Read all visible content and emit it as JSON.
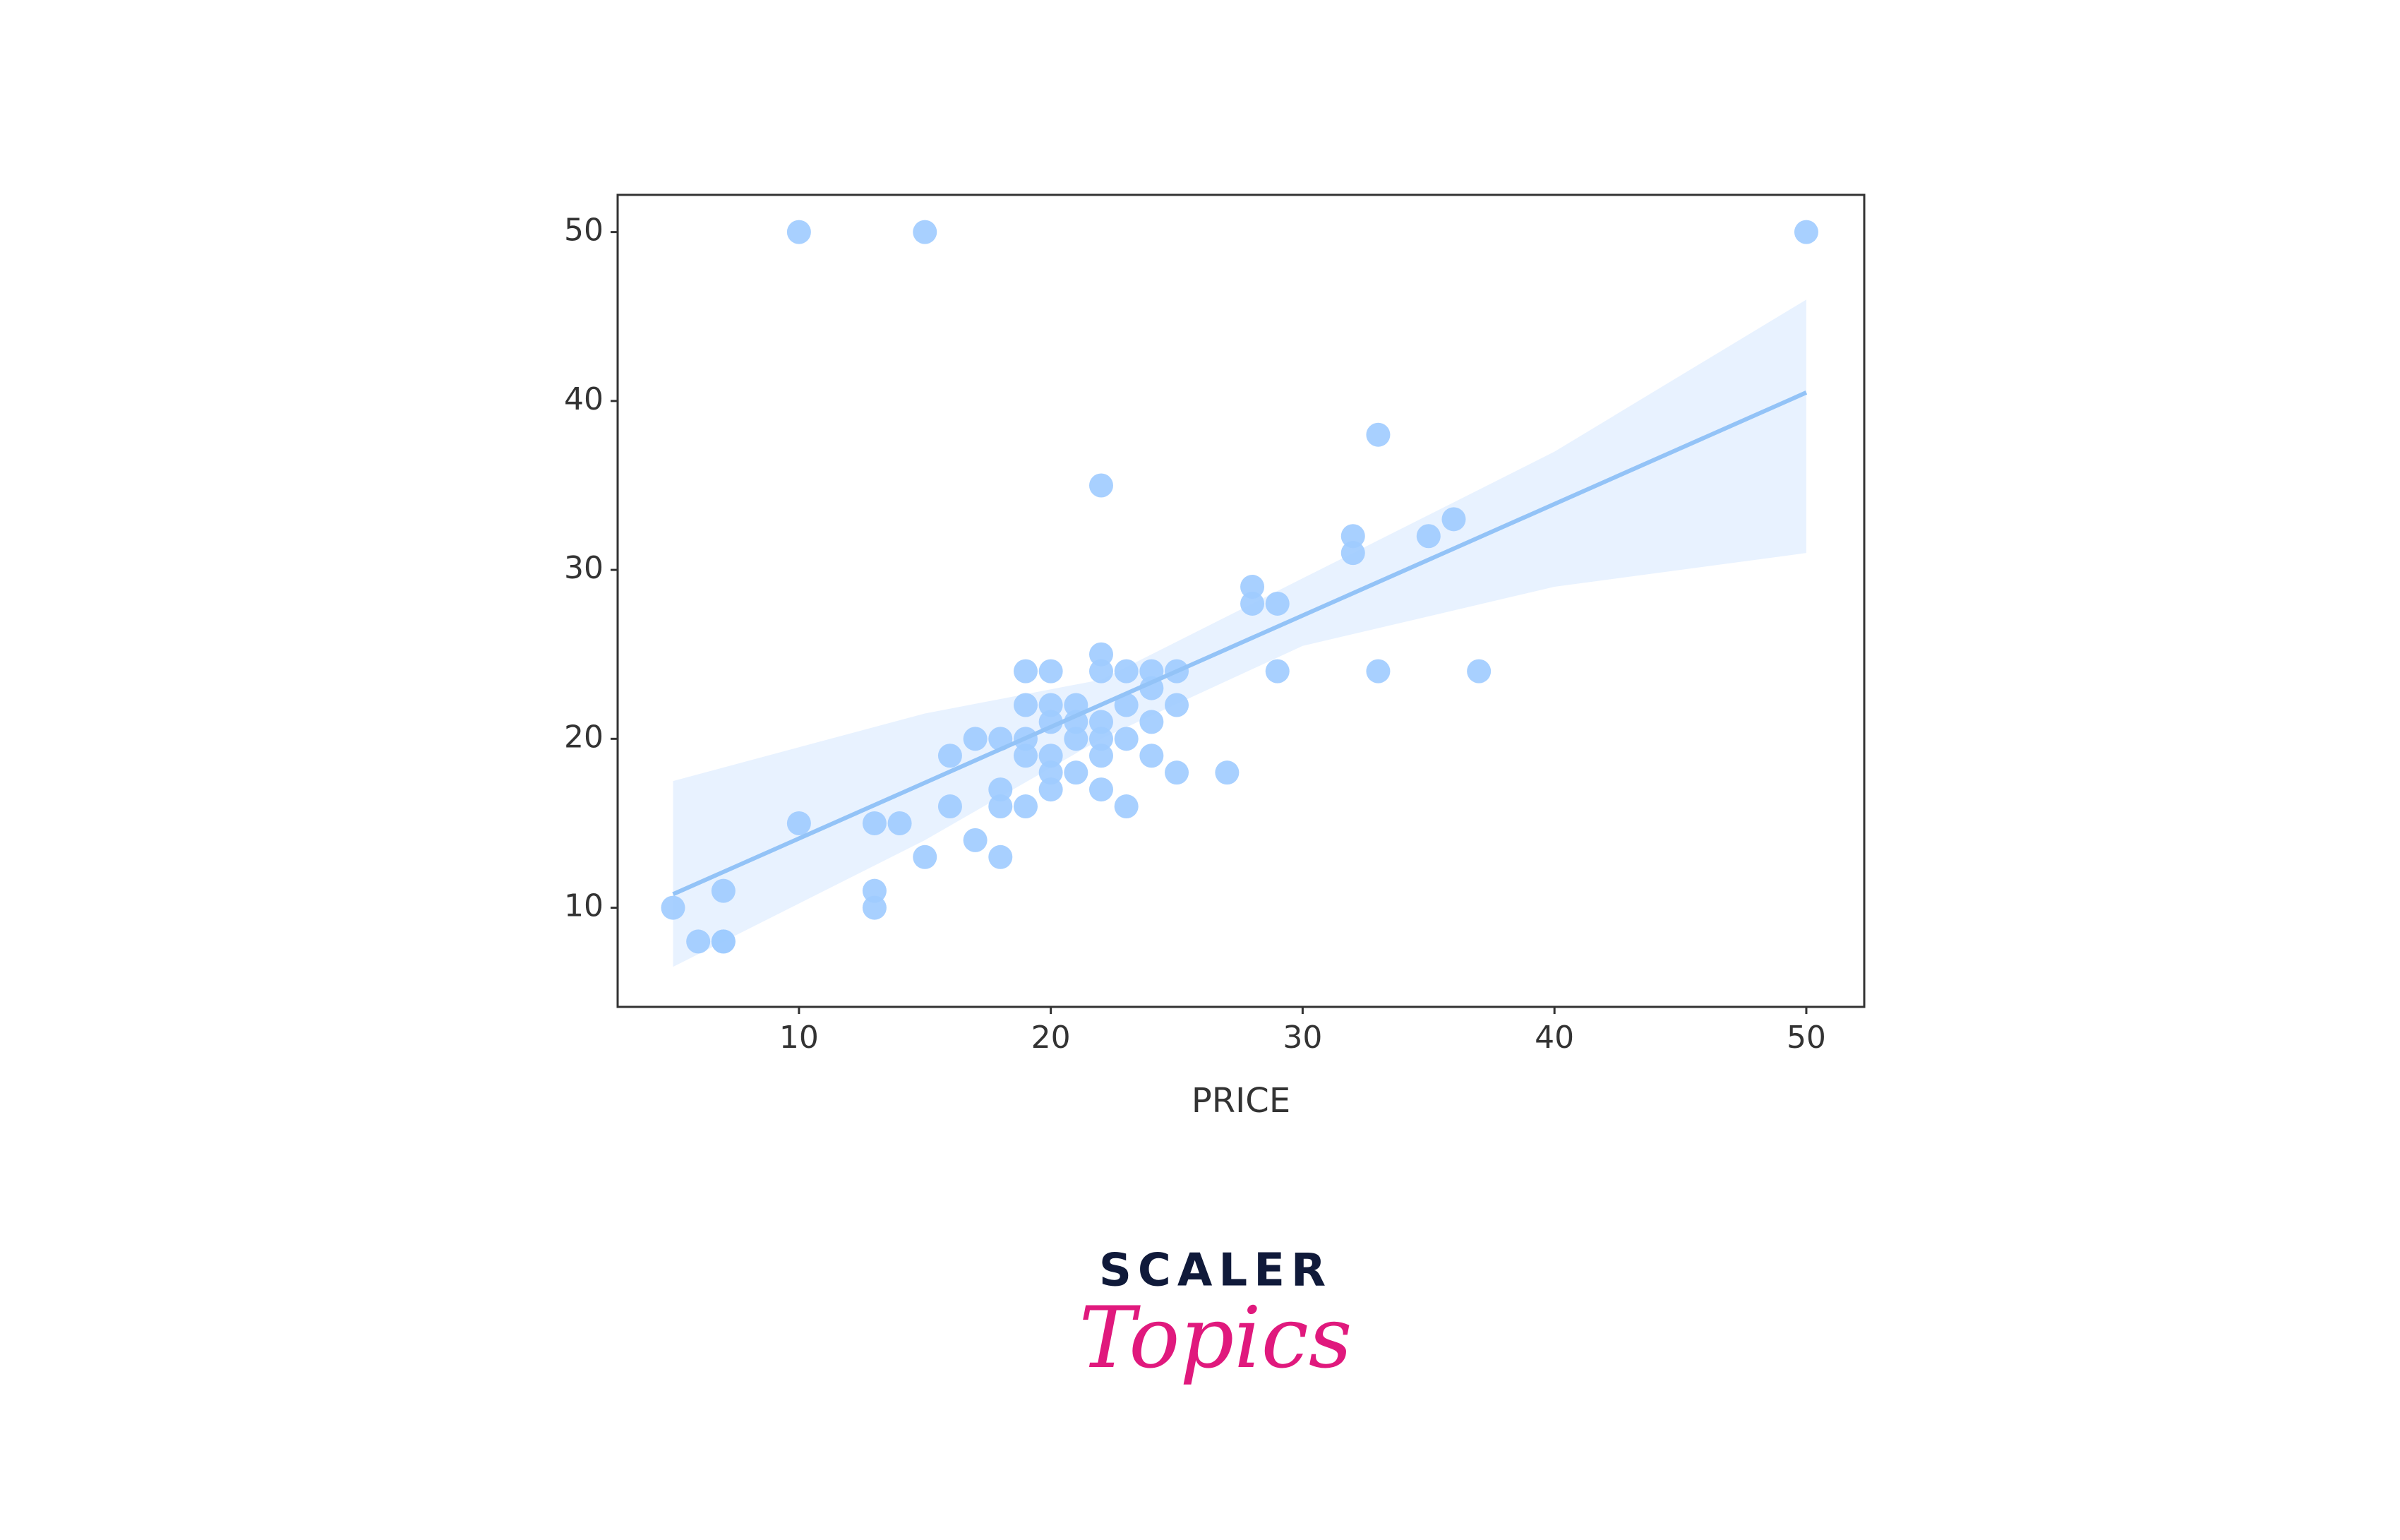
{
  "chart_data": {
    "type": "regplot",
    "x_label": "PRICE",
    "x": [
      5,
      6,
      7,
      7,
      7,
      10,
      10,
      13,
      13,
      13,
      14,
      15,
      15,
      16,
      16,
      17,
      17,
      18,
      18,
      18,
      18,
      19,
      19,
      19,
      19,
      19,
      20,
      20,
      20,
      20,
      20,
      20,
      21,
      21,
      21,
      21,
      22,
      22,
      22,
      22,
      22,
      22,
      22,
      23,
      23,
      23,
      23,
      24,
      24,
      24,
      24,
      25,
      25,
      25,
      27,
      28,
      28,
      29,
      29,
      32,
      32,
      33,
      33,
      35,
      36,
      37,
      50
    ],
    "values": [
      10,
      8,
      8,
      8,
      11,
      15,
      50,
      15,
      11,
      10,
      15,
      13,
      50,
      19,
      16,
      20,
      14,
      20,
      17,
      16,
      13,
      24,
      22,
      20,
      19,
      16,
      24,
      22,
      21,
      19,
      18,
      17,
      22,
      21,
      20,
      18,
      35,
      25,
      24,
      21,
      20,
      19,
      17,
      24,
      22,
      20,
      16,
      24,
      23,
      21,
      19,
      24,
      22,
      18,
      18,
      29,
      28,
      28,
      24,
      32,
      31,
      38,
      24,
      32,
      33,
      24,
      50
    ],
    "color": "#9ecbff",
    "regression": {
      "x": [
        5,
        50
      ],
      "values": [
        10.8,
        40.5
      ],
      "color": "#93c3f7"
    },
    "ci": {
      "x": [
        5,
        15,
        22,
        30,
        40,
        50
      ],
      "upper": [
        17.5,
        21.5,
        23.5,
        29.5,
        37,
        46
      ],
      "lower": [
        6.5,
        14,
        20,
        25.5,
        29,
        31
      ],
      "color": "#e8f2ff"
    },
    "xlim": [
      2.8,
      52.3
    ],
    "ylim": [
      4.13,
      52.2
    ],
    "xticks": [
      10,
      20,
      30,
      40,
      50
    ],
    "yticks": [
      10,
      20,
      30,
      40,
      50
    ],
    "grid": false
  },
  "logo": {
    "name": "SCALER",
    "tagline": "Topics"
  }
}
